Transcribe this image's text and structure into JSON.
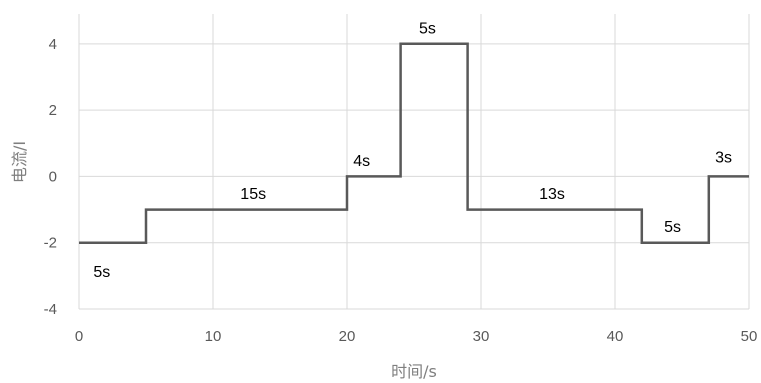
{
  "chart_data": {
    "type": "line",
    "step": true,
    "xlabel": "时间/s",
    "ylabel": "电流/I",
    "xlim": [
      0,
      50
    ],
    "ylim": [
      -4,
      4.9
    ],
    "xticks": [
      0,
      10,
      20,
      30,
      40,
      50
    ],
    "yticks": [
      -4,
      -2,
      0,
      2,
      4
    ],
    "grid": true,
    "legend": "none",
    "series": [
      {
        "color": "#595959",
        "x": [
          0,
          5,
          5,
          20,
          20,
          24,
          24,
          29,
          29,
          42,
          42,
          47,
          47,
          50
        ],
        "y": [
          -2,
          -2,
          -1,
          -1,
          0,
          0,
          4,
          4,
          -1,
          -1,
          -2,
          -2,
          0,
          0
        ]
      }
    ],
    "annotations": [
      {
        "text": "5s",
        "x": 1.7,
        "y": -2.85
      },
      {
        "text": "15s",
        "x": 13,
        "y": -0.5
      },
      {
        "text": "4s",
        "x": 21.1,
        "y": 0.5
      },
      {
        "text": "5s",
        "x": 26,
        "y": 4.5
      },
      {
        "text": "13s",
        "x": 35.3,
        "y": -0.5
      },
      {
        "text": "5s",
        "x": 44.3,
        "y": -1.5
      },
      {
        "text": "3s",
        "x": 48.1,
        "y": 0.6
      }
    ]
  }
}
